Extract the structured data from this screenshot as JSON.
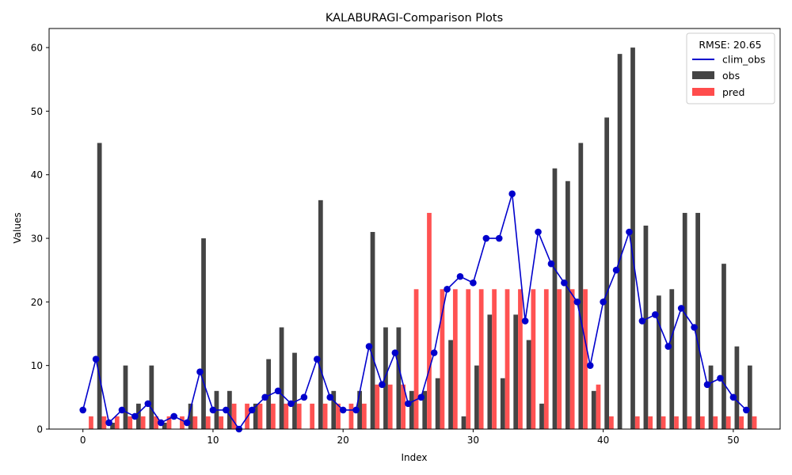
{
  "chart_data": {
    "type": "bar",
    "title": "KALABURAGI-Comparison Plots",
    "xlabel": "Index",
    "ylabel": "Values",
    "xlim": [
      -2.6,
      53.6
    ],
    "ylim": [
      0,
      63
    ],
    "xticks": [
      0,
      10,
      20,
      30,
      40,
      50
    ],
    "yticks": [
      0,
      10,
      20,
      30,
      40,
      50,
      60
    ],
    "grid": false,
    "legend": {
      "placement": "top-right",
      "title": "RMSE: 20.65",
      "entries": [
        {
          "label": "clim_obs",
          "kind": "line",
          "color": "#0000cc"
        },
        {
          "label": "obs",
          "kind": "bar",
          "color": "#444444"
        },
        {
          "label": "pred",
          "kind": "bar",
          "color": "#ff4c4c"
        }
      ]
    },
    "x": [
      0,
      1,
      2,
      3,
      4,
      5,
      6,
      7,
      8,
      9,
      10,
      11,
      12,
      13,
      14,
      15,
      16,
      17,
      18,
      19,
      20,
      21,
      22,
      23,
      24,
      25,
      26,
      27,
      28,
      29,
      30,
      31,
      32,
      33,
      34,
      35,
      36,
      37,
      38,
      39,
      40,
      41,
      42,
      43,
      44,
      45,
      46,
      47,
      48,
      49,
      50,
      51
    ],
    "series": [
      {
        "name": "obs",
        "kind": "bar",
        "color": "#444444",
        "values": [
          0,
          45,
          1,
          10,
          4,
          10,
          1,
          0,
          4,
          30,
          6,
          6,
          0,
          4,
          11,
          16,
          12,
          0,
          36,
          6,
          0,
          6,
          31,
          16,
          16,
          6,
          6,
          8,
          14,
          2,
          10,
          18,
          8,
          18,
          14,
          4,
          41,
          39,
          45,
          6,
          49,
          59,
          60,
          32,
          21,
          22,
          34,
          34,
          10,
          26,
          13,
          10
        ]
      },
      {
        "name": "pred",
        "kind": "bar",
        "color": "#ff4c4c",
        "values": [
          2,
          2,
          2,
          2,
          2,
          2,
          2,
          2,
          2,
          2,
          2,
          4,
          4,
          4,
          4,
          4,
          4,
          4,
          4,
          4,
          4,
          4,
          7,
          7,
          7,
          22,
          34,
          22,
          22,
          22,
          22,
          22,
          22,
          22,
          22,
          22,
          22,
          22,
          22,
          7,
          2,
          0,
          2,
          2,
          2,
          2,
          2,
          2,
          2,
          2,
          2,
          2
        ]
      },
      {
        "name": "clim_obs",
        "kind": "line",
        "color": "#0000cc",
        "values": [
          3,
          11,
          1,
          3,
          2,
          4,
          1,
          2,
          1,
          9,
          3,
          3,
          0,
          3,
          5,
          6,
          4,
          5,
          11,
          5,
          3,
          3,
          13,
          7,
          12,
          4,
          5,
          12,
          22,
          24,
          23,
          30,
          30,
          37,
          17,
          31,
          26,
          23,
          20,
          10,
          20,
          25,
          31,
          17,
          18,
          13,
          19,
          16,
          7,
          8,
          5,
          3
        ]
      }
    ]
  }
}
